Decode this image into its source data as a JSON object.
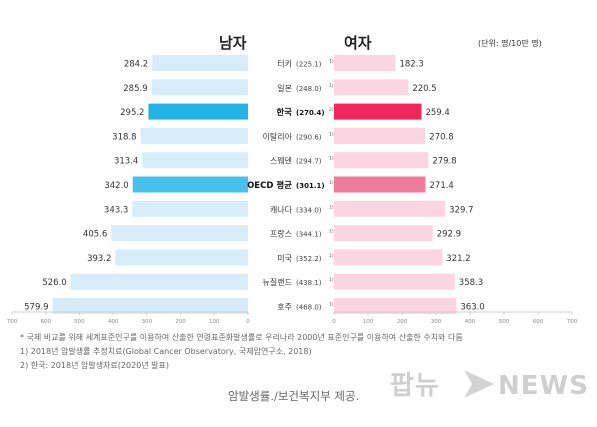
{
  "header": {
    "men": "남자",
    "women": "여자",
    "unit": "(단위: 명/10만 명)"
  },
  "chart_data": {
    "type": "bar",
    "orientation": "horizontal-back-to-back",
    "categories": [
      {
        "name": "터키",
        "total": "(225.1)",
        "sup": "1)"
      },
      {
        "name": "일본",
        "total": "(248.0)",
        "sup": "1)"
      },
      {
        "name": "한국",
        "total": "(270.4)",
        "sup": "2)",
        "highlight": "korea"
      },
      {
        "name": "이탈리아",
        "total": "(290.6)",
        "sup": "1)"
      },
      {
        "name": "스웨덴",
        "total": "(294.7)",
        "sup": "1)"
      },
      {
        "name": "OECD 평균",
        "total": "(301.1)",
        "sup": "1)",
        "highlight": "oecd"
      },
      {
        "name": "캐나다",
        "total": "(334.0)",
        "sup": "1)"
      },
      {
        "name": "프랑스",
        "total": "(344.1)",
        "sup": "1)"
      },
      {
        "name": "미국",
        "total": "(352.2)",
        "sup": "1)"
      },
      {
        "name": "뉴질랜드",
        "total": "(438.1)",
        "sup": "1)"
      },
      {
        "name": "호주",
        "total": "(468.0)",
        "sup": "1)"
      }
    ],
    "series": [
      {
        "name": "남자",
        "values": [
          284.2,
          285.9,
          295.2,
          318.8,
          313.4,
          342.0,
          343.3,
          405.6,
          393.2,
          526.0,
          579.9
        ]
      },
      {
        "name": "여자",
        "values": [
          182.3,
          220.5,
          259.4,
          270.8,
          279.8,
          271.4,
          329.7,
          292.9,
          321.2,
          358.3,
          363.0
        ]
      }
    ],
    "xlim": [
      0,
      700
    ],
    "xticks_left": [
      "700",
      "600",
      "500",
      "400",
      "300",
      "200",
      "100",
      "0"
    ],
    "xticks_right": [
      "0",
      "100",
      "200",
      "300",
      "400",
      "500",
      "600",
      "700"
    ],
    "colors": {
      "male": "#d6ecf8",
      "male_korea": "#22b2e6",
      "male_oecd": "#47c1ec",
      "female": "#fbd5e2",
      "female_korea": "#f2255c",
      "female_oecd": "#f07c9c"
    }
  },
  "footnotes": {
    "note": "* 국제 비교를 위해 세계표준인구를  이용하여 산출한 연령표준화발생률로  우리나라 2000년  표준인구를 이용하여 산출한 수치와 다름",
    "source1": "1) 2018년 암발생률 추정치료(Global  Cancer  Observatory,  국제암연구소,  2018)",
    "source2": "2) 한국: 2018년 암발생자료(2020년  발표)"
  },
  "credit": "암발생률./보건복지부 제공.",
  "watermark": "팝뉴스NEWS"
}
